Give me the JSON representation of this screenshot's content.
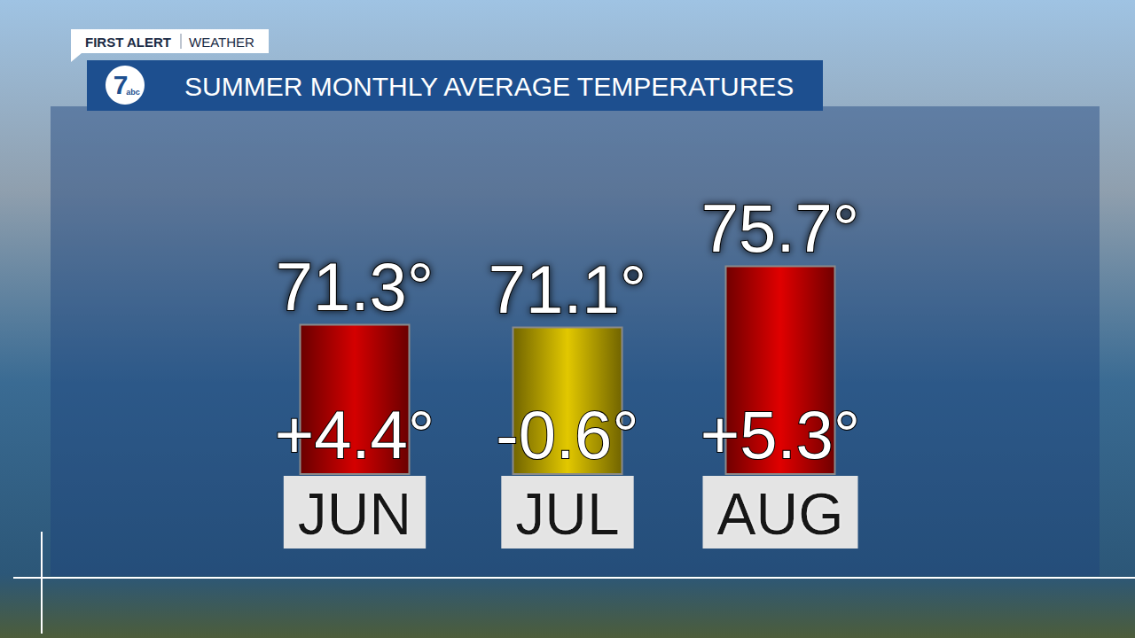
{
  "chart_data": {
    "type": "bar",
    "title": "SUMMER MONTHLY AVERAGE TEMPERATURES",
    "annotations": [
      "FIRST ALERT",
      "WEATHER"
    ],
    "logo": [
      "7",
      "abc"
    ],
    "categories": [
      "JUN",
      "JUL",
      "AUG"
    ],
    "values": [
      71.3,
      71.1,
      75.7
    ],
    "value_labels": [
      "71.3°",
      "71.1°",
      "75.7°"
    ],
    "anomalies": [
      4.4,
      -0.6,
      5.3
    ],
    "anomaly_labels": [
      "+4.4°",
      "-0.6°",
      "+5.3°"
    ],
    "colors": [
      "#d40000",
      "#e2c800",
      "#e00000"
    ],
    "ylim": [
      60,
      80
    ],
    "yticks": [
      60,
      80
    ],
    "grid": false,
    "data_labels": true,
    "tick_labels": "x"
  }
}
